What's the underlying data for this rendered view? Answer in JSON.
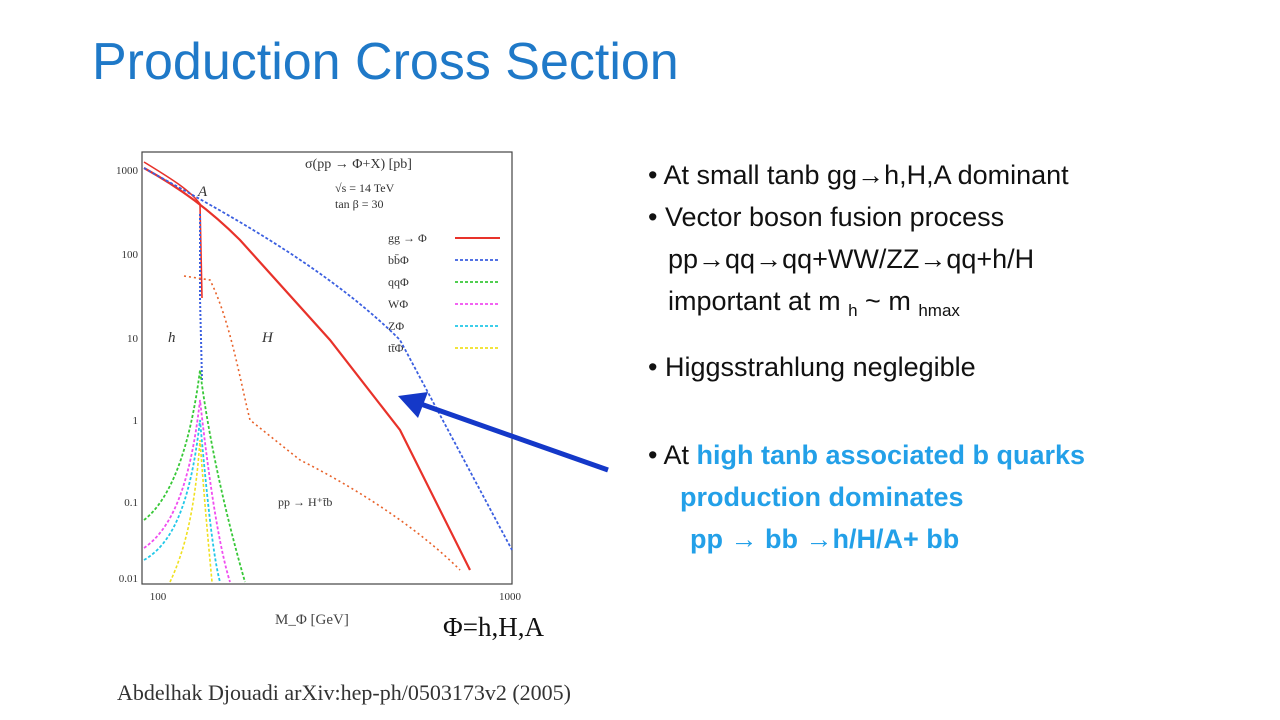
{
  "slide": {
    "title": "Production Cross Section"
  },
  "plot": {
    "ylabel": "σ(pp → Φ+X) [pb]",
    "annotations": [
      "√s = 14 TeV",
      "tan β = 30",
      "A",
      "h",
      "H",
      "pp → H⁺t̄b"
    ],
    "xlabel": "M_Φ [GeV]",
    "xticks": [
      "100",
      "1000"
    ],
    "yticks": [
      "1000",
      "100",
      "10",
      "1",
      "0.1",
      "0.01"
    ],
    "legend": [
      {
        "label": "gg → Φ",
        "color": "#e8322a"
      },
      {
        "label": "bb̄Φ",
        "color": "#3b5fe0"
      },
      {
        "label": "qqΦ",
        "color": "#37c837"
      },
      {
        "label": "WΦ",
        "color": "#f04df0"
      },
      {
        "label": "ZΦ",
        "color": "#22c8e8"
      },
      {
        "label": "tt̄Φ",
        "color": "#f0e020"
      }
    ]
  },
  "bullets": [
    {
      "text": "At small tanb gg→h,H,A dominant"
    },
    {
      "text": "Vector boson fusion process"
    },
    {
      "text": "pp→qq→qq+WW/ZZ→qq+h/H"
    },
    {
      "pre": "important at  m",
      "sub1": "h",
      "mid": " ~ m",
      "sub2": "hmax"
    },
    {
      "text": "Higgsstrahlung neglegible"
    },
    {
      "pre": "At ",
      "hl": "high tanb associated  b quarks"
    },
    {
      "hl": "production dominates"
    },
    {
      "hl": "pp → bb →h/H/A+ bb"
    }
  ],
  "phi_label": "Φ=h,H,A",
  "citation": "Abdelhak Djouadi  arXiv:hep-ph/0503173v2 (2005)",
  "colors": {
    "title": "#1f79c8",
    "highlight": "#23a0e8",
    "arrow": "#1438c8"
  }
}
